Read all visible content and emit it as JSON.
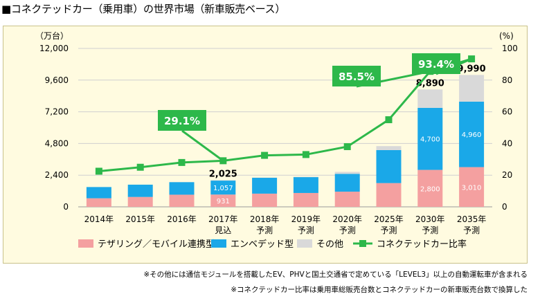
{
  "title": "■コネクテッドカー（乗用車）の世界市場（新車販売ベース）",
  "notes": [
    "※その他には通信モジュールを搭載したEV、PHVと国土交通省で定めている「LEVEL3」以上の自動運転車が含まれる",
    "※コネクテッドカー比率は乗用車総販売台数とコネクテッドカーの新車販売台数で換算した"
  ],
  "colors": {
    "tethering": "#f4a0a0",
    "embedded": "#1aa8e8",
    "other": "#d9d9d9",
    "ratio": "#2db84a",
    "background": "#fffbe0"
  },
  "chart_data": {
    "type": "bar",
    "stacked": true,
    "categories": [
      [
        "2014年"
      ],
      [
        "2015年"
      ],
      [
        "2016年"
      ],
      [
        "2017年",
        "見込"
      ],
      [
        "2018年",
        "予測"
      ],
      [
        "2019年",
        "予測"
      ],
      [
        "2020年",
        "予測"
      ],
      [
        "2025年",
        "予測"
      ],
      [
        "2030年",
        "予測"
      ],
      [
        "2035年",
        "予測"
      ]
    ],
    "ylabel_left": "（万台）",
    "ylabel_right": "(%)",
    "ylim_left": [
      0,
      12000
    ],
    "ylim_right": [
      0,
      100
    ],
    "yticks_left": [
      "0",
      "2,400",
      "4,800",
      "7,200",
      "9,600",
      "12,000"
    ],
    "yticks_right": [
      "0",
      "20",
      "40",
      "60",
      "80",
      "100"
    ],
    "series": [
      {
        "name": "テザリング／モバイル連携型",
        "values": [
          650,
          750,
          920,
          931,
          1000,
          1050,
          1150,
          1800,
          2800,
          3010
        ]
      },
      {
        "name": "エンベデッド型",
        "values": [
          850,
          930,
          950,
          1057,
          1200,
          1200,
          1350,
          2500,
          4700,
          4960
        ]
      },
      {
        "name": "その他",
        "values": [
          0,
          0,
          0,
          37,
          20,
          30,
          150,
          300,
          1390,
          2020
        ]
      }
    ],
    "line": {
      "name": "コネクテッドカー比率",
      "values": [
        22.5,
        25,
        28,
        29.1,
        32.5,
        33,
        38,
        55,
        85.5,
        93.4
      ]
    },
    "data_labels": {
      "totals": [
        {
          "index": 3,
          "text": "2,025"
        },
        {
          "index": 8,
          "text": "8,890"
        },
        {
          "index": 9,
          "text": "9,990"
        }
      ],
      "tethering": [
        {
          "index": 3,
          "text": "931"
        },
        {
          "index": 8,
          "text": "2,800"
        },
        {
          "index": 9,
          "text": "3,010"
        }
      ],
      "embedded": [
        {
          "index": 3,
          "text": "1,057"
        },
        {
          "index": 8,
          "text": "4,700"
        },
        {
          "index": 9,
          "text": "4,960"
        }
      ]
    },
    "callouts": [
      {
        "index": 3,
        "text": "29.1%"
      },
      {
        "index": 8,
        "text": "85.5%"
      },
      {
        "index": 9,
        "text": "93.4%"
      }
    ],
    "legend": [
      "テザリング／モバイル連携型",
      "エンベデッド型",
      "その他",
      "コネクテッドカー比率"
    ],
    "legend_position": "bottom"
  }
}
